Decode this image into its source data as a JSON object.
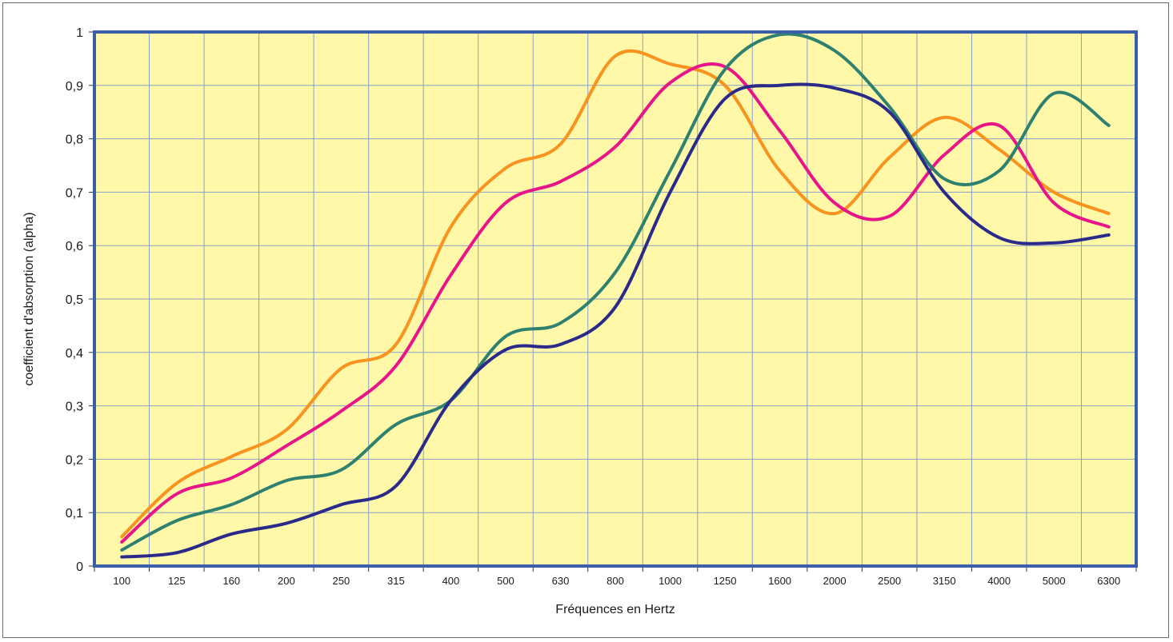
{
  "chart_data": {
    "type": "line",
    "title": "",
    "xlabel": "Fréquences en Hertz",
    "ylabel": "coefficient d'absorption (alpha)",
    "categories": [
      "100",
      "125",
      "160",
      "200",
      "250",
      "315",
      "400",
      "500",
      "630",
      "800",
      "1000",
      "1250",
      "1600",
      "2000",
      "2500",
      "3150",
      "4000",
      "5000",
      "6300"
    ],
    "ylim": [
      0,
      1
    ],
    "yticks": [
      "0",
      "0,1",
      "0,2",
      "0,3",
      "0,4",
      "0,5",
      "0,6",
      "0,7",
      "0,8",
      "0,9",
      "1"
    ],
    "grid": true,
    "legend": "none",
    "colors": {
      "plot_background": "#fff8a8",
      "plot_border": "#3b5ea8",
      "grid": "#8aa0c8"
    },
    "series": [
      {
        "color": "#f7931e",
        "values": [
          0.055,
          0.155,
          0.205,
          0.255,
          0.37,
          0.415,
          0.635,
          0.745,
          0.79,
          0.955,
          0.94,
          0.9,
          0.74,
          0.66,
          0.765,
          0.84,
          0.78,
          0.7,
          0.66
        ]
      },
      {
        "color": "#e8158a",
        "values": [
          0.045,
          0.135,
          0.165,
          0.225,
          0.29,
          0.375,
          0.545,
          0.68,
          0.72,
          0.785,
          0.905,
          0.935,
          0.815,
          0.68,
          0.655,
          0.77,
          0.825,
          0.68,
          0.635
        ]
      },
      {
        "color": "#2e8070",
        "values": [
          0.03,
          0.085,
          0.115,
          0.16,
          0.18,
          0.265,
          0.31,
          0.43,
          0.455,
          0.55,
          0.74,
          0.93,
          0.995,
          0.965,
          0.86,
          0.725,
          0.74,
          0.885,
          0.825
        ]
      },
      {
        "color": "#2a2a8a",
        "values": [
          0.017,
          0.025,
          0.06,
          0.08,
          0.115,
          0.15,
          0.31,
          0.405,
          0.415,
          0.485,
          0.7,
          0.875,
          0.9,
          0.895,
          0.85,
          0.7,
          0.615,
          0.605,
          0.62
        ]
      }
    ]
  }
}
